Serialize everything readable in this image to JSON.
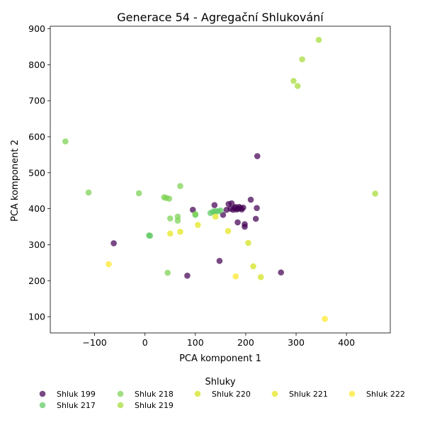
{
  "chart_data": {
    "type": "scatter",
    "title": "Generace 54 - Agregační Shlukování",
    "xlabel": "PCA komponent 1",
    "ylabel": "PCA komponent 2",
    "xlim": [
      -188,
      487
    ],
    "ylim": [
      55,
      907
    ],
    "xticks": [
      -100,
      0,
      100,
      200,
      300,
      400
    ],
    "yticks": [
      100,
      200,
      300,
      400,
      500,
      600,
      700,
      800,
      900
    ],
    "grid": false,
    "legend_title": "Shluky",
    "legend_position": "bottom",
    "series": [
      {
        "name": "Shluk 199",
        "color": "#440154",
        "points": [
          [
            -62,
            304
          ],
          [
            84,
            214
          ],
          [
            95,
            397
          ],
          [
            138,
            410
          ],
          [
            148,
            255
          ],
          [
            155,
            383
          ],
          [
            162,
            397
          ],
          [
            166,
            413
          ],
          [
            170,
            400
          ],
          [
            172,
            415
          ],
          [
            175,
            397
          ],
          [
            178,
            402
          ],
          [
            180,
            405
          ],
          [
            182,
            398
          ],
          [
            184,
            362
          ],
          [
            185,
            400
          ],
          [
            187,
            405
          ],
          [
            190,
            402
          ],
          [
            192,
            398
          ],
          [
            195,
            403
          ],
          [
            198,
            350
          ],
          [
            198,
            357
          ],
          [
            210,
            425
          ],
          [
            220,
            372
          ],
          [
            222,
            402
          ],
          [
            223,
            546
          ],
          [
            270,
            223
          ]
        ]
      },
      {
        "name": "Shluk 217",
        "color": "#5ec962",
        "points": [
          [
            8,
            326
          ],
          [
            10,
            325
          ],
          [
            100,
            383
          ],
          [
            130,
            388
          ],
          [
            135,
            392
          ],
          [
            140,
            393
          ],
          [
            145,
            393
          ],
          [
            150,
            395
          ]
        ]
      },
      {
        "name": "Shluk 218",
        "color": "#7ad151",
        "points": [
          [
            -158,
            587
          ],
          [
            -112,
            445
          ],
          [
            -12,
            443
          ],
          [
            38,
            432
          ],
          [
            42,
            430
          ],
          [
            45,
            222
          ],
          [
            48,
            428
          ],
          [
            50,
            373
          ],
          [
            65,
            367
          ],
          [
            65,
            378
          ],
          [
            70,
            463
          ],
          [
            100,
            385
          ]
        ]
      },
      {
        "name": "Shluk 219",
        "color": "#a5db36",
        "points": [
          [
            295,
            755
          ],
          [
            303,
            741
          ],
          [
            312,
            815
          ],
          [
            345,
            869
          ],
          [
            457,
            442
          ]
        ]
      },
      {
        "name": "Shluk 220",
        "color": "#d2e21b",
        "points": [
          [
            205,
            305
          ],
          [
            215,
            240
          ],
          [
            230,
            210
          ]
        ]
      },
      {
        "name": "Shluk 221",
        "color": "#e5e419",
        "points": [
          [
            50,
            331
          ],
          [
            70,
            336
          ],
          [
            105,
            355
          ],
          [
            140,
            378
          ],
          [
            165,
            338
          ]
        ]
      },
      {
        "name": "Shluk 222",
        "color": "#fde725",
        "points": [
          [
            -72,
            246
          ],
          [
            180,
            212
          ],
          [
            357,
            94
          ]
        ]
      }
    ]
  }
}
